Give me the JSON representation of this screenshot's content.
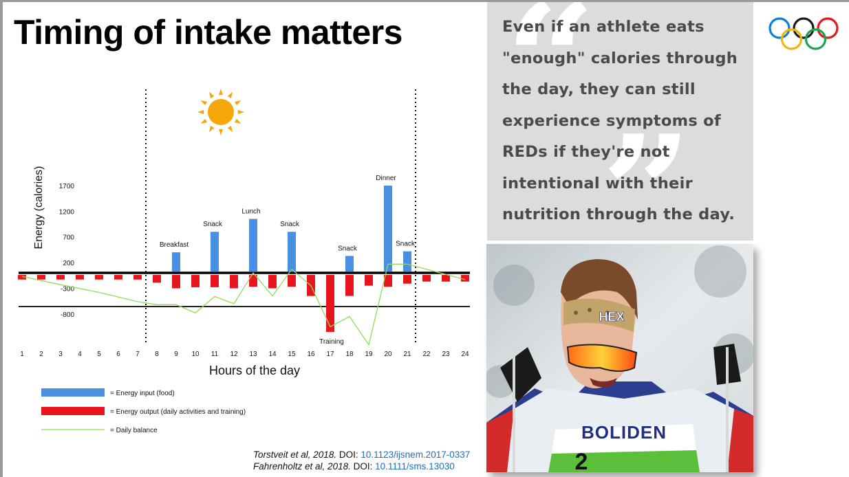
{
  "slide": {
    "title": "Timing of intake matters"
  },
  "quote": {
    "text": "Even if an athlete eats \"enough\" calories through the day, they can still experience symptoms of REDs if they're not intentional with their nutrition through the day."
  },
  "citations": [
    {
      "authors": "Torstveit et al, 2018.",
      "doi_label": "DOI:",
      "doi": "10.1123/ijsnem.2017-0337"
    },
    {
      "authors": "Fahrenholtz et al, 2018.",
      "doi_label": "DOI:",
      "doi": "10.1111/sms.13030"
    }
  ],
  "icons": {
    "moon_left": "moon-icon",
    "sun": "sun-icon",
    "moon_right": "moon-icon",
    "logo": "olympic-rings-icon"
  },
  "colors": {
    "energy_input": "#4a90e2",
    "energy_output": "#e8141e",
    "daily_balance": "#8fdc5a",
    "moon": "#8a8a8a",
    "sun": "#f5a70a",
    "quote_background": "#dcdcdc",
    "quote_text": "#4a4a4a"
  },
  "photo": {
    "bib_sponsor": "BOLIDEN",
    "bib_number": "2",
    "headband_text": "HEX"
  },
  "chart_data": {
    "type": "bar",
    "xlabel": "Hours of the day",
    "ylabel": "Energy (calories)",
    "ytick_labels": [
      "1700",
      "1200",
      "700",
      "200",
      "-300",
      "-800"
    ],
    "ytick_values": [
      1700,
      1200,
      700,
      200,
      -300,
      -800
    ],
    "ylim": [
      -1000,
      1800
    ],
    "x": [
      1,
      2,
      3,
      4,
      5,
      6,
      7,
      8,
      9,
      10,
      11,
      12,
      13,
      14,
      15,
      16,
      17,
      18,
      19,
      20,
      21,
      22,
      23,
      24
    ],
    "legend": [
      {
        "key": "input",
        "label": "= Energy input (food)"
      },
      {
        "key": "output",
        "label": "= Energy output (daily activities and training)"
      },
      {
        "key": "balance",
        "label": "= Daily balance"
      }
    ],
    "series": [
      {
        "key": "input",
        "type": "bar",
        "points": [
          {
            "x": 9,
            "value": 400,
            "label": "Breakfast"
          },
          {
            "x": 11,
            "value": 800,
            "label": "Snack"
          },
          {
            "x": 13,
            "value": 1050,
            "label": "Lunch"
          },
          {
            "x": 15,
            "value": 800,
            "label": "Snack"
          },
          {
            "x": 18,
            "value": 330,
            "label": "Snack"
          },
          {
            "x": 20,
            "value": 1700,
            "label": "Dinner"
          },
          {
            "x": 21,
            "value": 420,
            "label": "Snack"
          }
        ]
      },
      {
        "key": "output",
        "type": "bar",
        "values": [
          -130,
          -130,
          -130,
          -130,
          -130,
          -130,
          -130,
          -190,
          -300,
          -280,
          -280,
          -300,
          -270,
          -300,
          -270,
          -450,
          -1150,
          -450,
          -250,
          -270,
          -210,
          -170,
          -170,
          -170
        ],
        "annotations": [
          {
            "x": 17,
            "label": "Training"
          }
        ]
      },
      {
        "key": "balance",
        "type": "line",
        "x": [
          1,
          3,
          5,
          7,
          8,
          9,
          10,
          11,
          12,
          13,
          14,
          15,
          16,
          17,
          18,
          19,
          20,
          21,
          24
        ],
        "values": [
          -70,
          -230,
          -380,
          -560,
          -620,
          -620,
          -780,
          -460,
          -600,
          0,
          -450,
          70,
          -250,
          -1050,
          -850,
          -1400,
          170,
          170,
          -130
        ]
      }
    ],
    "period_dividers": [
      7.5,
      21.5
    ]
  }
}
